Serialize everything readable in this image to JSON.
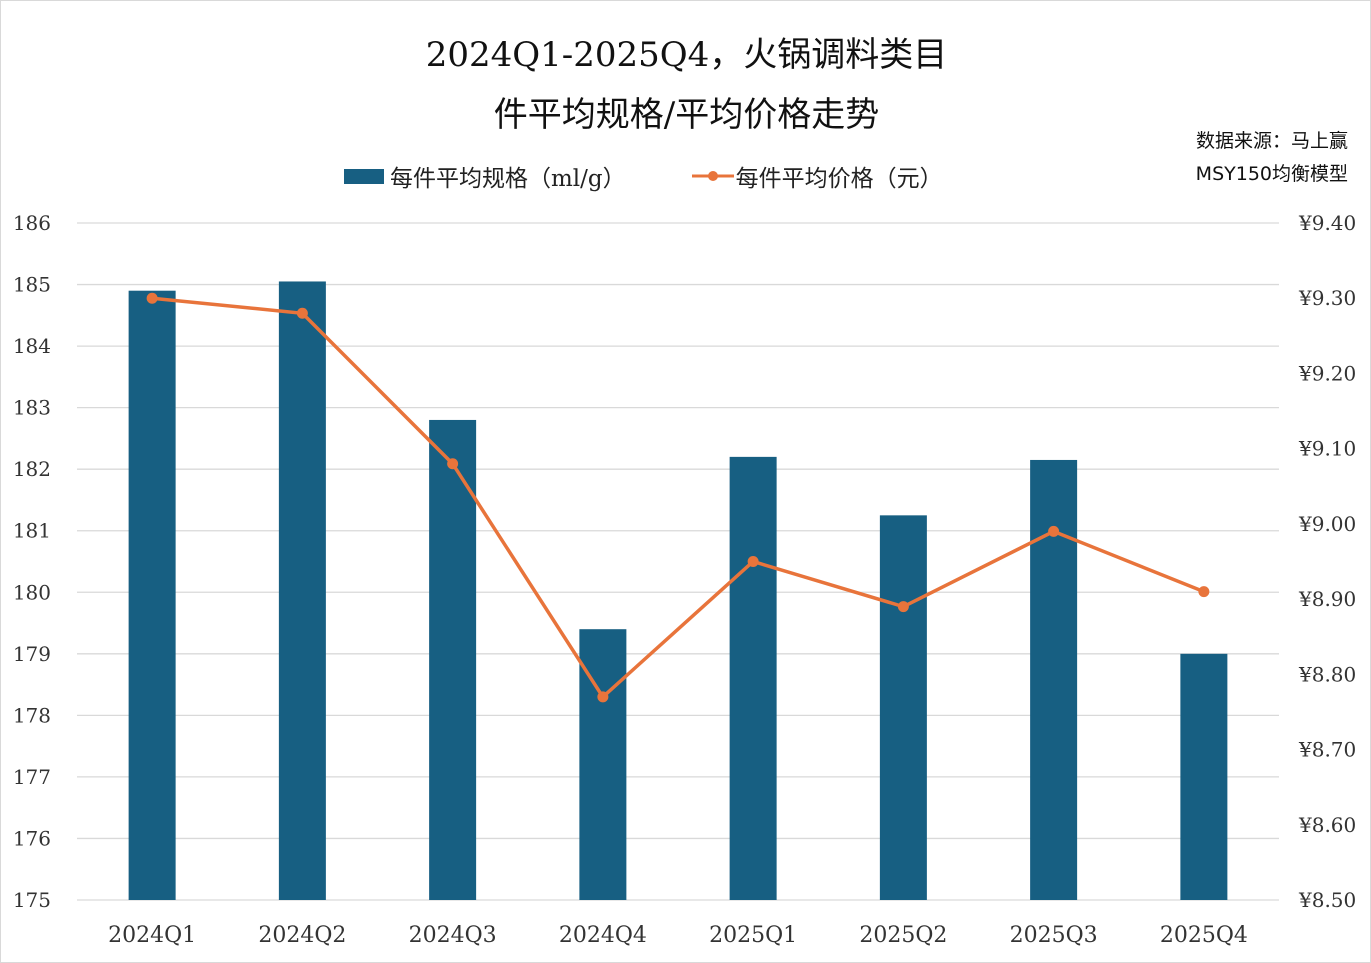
{
  "chart_data": {
    "type": "bar+line",
    "title_line1": "2024Q1-2025Q4，火锅调料类目",
    "title_line2": "件平均规格/平均价格走势",
    "source_line1": "数据来源：马上赢",
    "source_line2": "MSY150均衡模型",
    "categories": [
      "2024Q1",
      "2024Q2",
      "2024Q3",
      "2024Q4",
      "2025Q1",
      "2025Q2",
      "2025Q3",
      "2025Q4"
    ],
    "series": [
      {
        "name": "每件平均规格（ml/g）",
        "type": "bar",
        "axis": "left",
        "color": "#175f82",
        "values": [
          184.9,
          185.05,
          182.8,
          179.4,
          182.2,
          181.25,
          182.15,
          179.0
        ]
      },
      {
        "name": "每件平均价格（元）",
        "type": "line",
        "axis": "right",
        "color": "#e8743b",
        "values": [
          9.3,
          9.28,
          9.08,
          8.77,
          8.95,
          8.89,
          8.99,
          8.91
        ]
      }
    ],
    "left_ylim": [
      175,
      186
    ],
    "left_ticks": [
      "175",
      "176",
      "177",
      "178",
      "179",
      "180",
      "181",
      "182",
      "183",
      "184",
      "185",
      "186"
    ],
    "right_ylim": [
      8.5,
      9.4
    ],
    "right_ticks": [
      "¥8.50",
      "¥8.60",
      "¥8.70",
      "¥8.80",
      "¥8.90",
      "¥9.00",
      "¥9.10",
      "¥9.20",
      "¥9.30",
      "¥9.40"
    ],
    "grid": true,
    "legend_position": "top"
  }
}
